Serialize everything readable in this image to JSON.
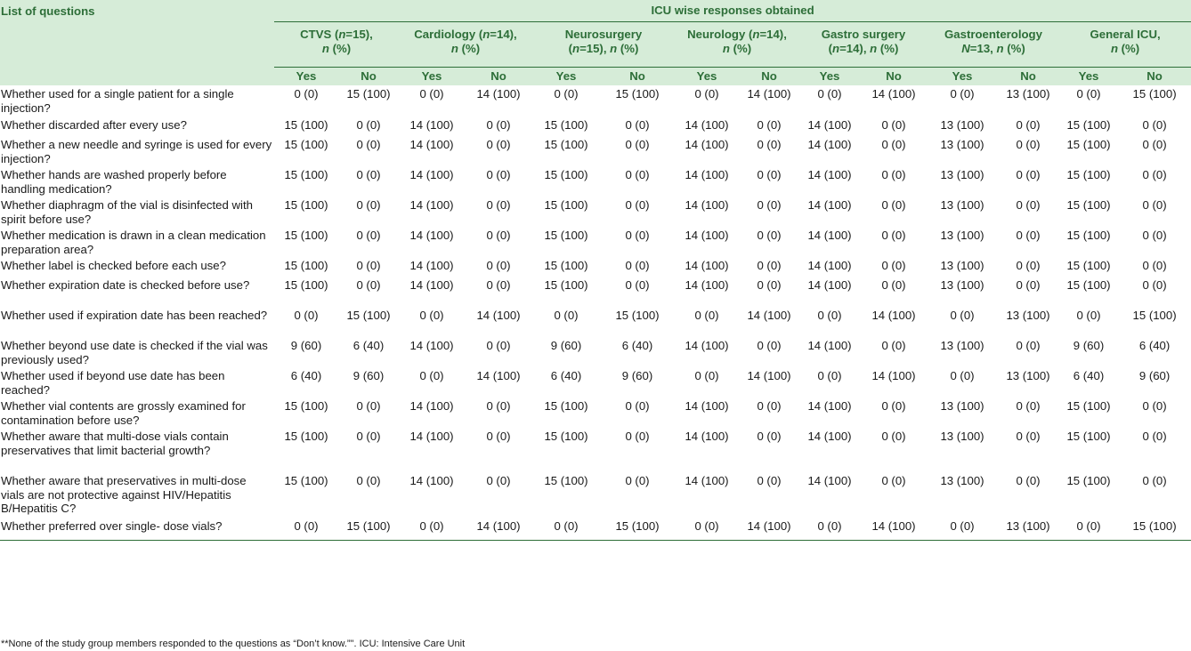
{
  "header": {
    "list_label": "List of questions",
    "icu_label": "ICU wise responses obtained",
    "groups": [
      {
        "name": "CTVS (",
        "n_label": "n",
        "n_eq": "=15),",
        "second": "n",
        "pct": " (%)"
      },
      {
        "name": "Cardiology (",
        "n_label": "n",
        "n_eq": "=14),",
        "second": "n",
        "pct": " (%)"
      },
      {
        "name": "Neurosurgery",
        "line2a": "(",
        "n_label": "n",
        "n_eq": "=15), ",
        "second": "n",
        "pct": " (%)"
      },
      {
        "name": "Neurology (",
        "n_label": "n",
        "n_eq": "=14),",
        "second": "n",
        "pct": " (%)"
      },
      {
        "name": "Gastro surgery",
        "line2a": "(",
        "n_label": "n",
        "n_eq": "=14), ",
        "second": "n",
        "pct": " (%)"
      },
      {
        "name": "Gastroenterology",
        "n_label": "N",
        "n_eq": "=13, ",
        "second": "n",
        "pct": " (%)"
      },
      {
        "name": "General ICU,",
        "second": "n",
        "pct": " (%)"
      }
    ],
    "yes": "Yes",
    "no": "No"
  },
  "rows": [
    {
      "q": "Whether used for a single patient for a single injection?",
      "v": [
        "0 (0)",
        "15 (100)",
        "0 (0)",
        "14 (100)",
        "0 (0)",
        "15 (100)",
        "0 (0)",
        "14 (100)",
        "0 (0)",
        "14 (100)",
        "0 (0)",
        "13 (100)",
        "0 (0)",
        "15 (100)"
      ]
    },
    {
      "q": "Whether discarded after every use?",
      "v": [
        "15 (100)",
        "0 (0)",
        "14 (100)",
        "0 (0)",
        "15 (100)",
        "0 (0)",
        "14 (100)",
        "0 (0)",
        "14 (100)",
        "0 (0)",
        "13 (100)",
        "0 (0)",
        "15 (100)",
        "0 (0)"
      ]
    },
    {
      "q": "Whether a new needle and syringe is used for every injection?",
      "v": [
        "15 (100)",
        "0 (0)",
        "14 (100)",
        "0 (0)",
        "15 (100)",
        "0 (0)",
        "14 (100)",
        "0 (0)",
        "14 (100)",
        "0 (0)",
        "13 (100)",
        "0 (0)",
        "15 (100)",
        "0 (0)"
      ]
    },
    {
      "q": "Whether hands are washed properly before handling medication?",
      "v": [
        "15 (100)",
        "0 (0)",
        "14 (100)",
        "0 (0)",
        "15 (100)",
        "0 (0)",
        "14 (100)",
        "0 (0)",
        "14 (100)",
        "0 (0)",
        "13 (100)",
        "0 (0)",
        "15 (100)",
        "0 (0)"
      ]
    },
    {
      "q": "Whether diaphragm of the vial is disinfected with spirit before use?",
      "v": [
        "15 (100)",
        "0 (0)",
        "14 (100)",
        "0 (0)",
        "15 (100)",
        "0 (0)",
        "14 (100)",
        "0 (0)",
        "14 (100)",
        "0 (0)",
        "13 (100)",
        "0 (0)",
        "15 (100)",
        "0 (0)"
      ]
    },
    {
      "q": "Whether medication is drawn in a clean medication preparation area?",
      "v": [
        "15 (100)",
        "0 (0)",
        "14 (100)",
        "0 (0)",
        "15 (100)",
        "0 (0)",
        "14 (100)",
        "0 (0)",
        "14 (100)",
        "0 (0)",
        "13 (100)",
        "0 (0)",
        "15 (100)",
        "0 (0)"
      ]
    },
    {
      "q": "Whether label is checked before each use?",
      "v": [
        "15 (100)",
        "0 (0)",
        "14 (100)",
        "0 (0)",
        "15 (100)",
        "0 (0)",
        "14 (100)",
        "0 (0)",
        "14 (100)",
        "0 (0)",
        "13 (100)",
        "0 (0)",
        "15 (100)",
        "0 (0)"
      ]
    },
    {
      "q": "Whether expiration date is checked before use?",
      "v": [
        "15 (100)",
        "0 (0)",
        "14 (100)",
        "0 (0)",
        "15 (100)",
        "0 (0)",
        "14 (100)",
        "0 (0)",
        "14 (100)",
        "0 (0)",
        "13 (100)",
        "0 (0)",
        "15 (100)",
        "0 (0)"
      ]
    },
    {
      "q": "Whether used if expiration date has been reached?",
      "v": [
        "0 (0)",
        "15 (100)",
        "0 (0)",
        "14 (100)",
        "0 (0)",
        "15 (100)",
        "0 (0)",
        "14 (100)",
        "0 (0)",
        "14 (100)",
        "0 (0)",
        "13 (100)",
        "0 (0)",
        "15 (100)"
      ]
    },
    {
      "q": "Whether beyond use date is checked if the vial was previously used?",
      "v": [
        "9 (60)",
        "6 (40)",
        "14 (100)",
        "0 (0)",
        "9 (60)",
        "6 (40)",
        "14 (100)",
        "0 (0)",
        "14 (100)",
        "0 (0)",
        "13 (100)",
        "0 (0)",
        "9 (60)",
        "6 (40)"
      ]
    },
    {
      "q": "Whether used if beyond use date has been reached?",
      "v": [
        "6 (40)",
        "9 (60)",
        "0 (0)",
        "14 (100)",
        "6 (40)",
        "9 (60)",
        "0 (0)",
        "14 (100)",
        "0 (0)",
        "14 (100)",
        "0 (0)",
        "13 (100)",
        "6 (40)",
        "9 (60)"
      ]
    },
    {
      "q": "Whether vial contents are grossly examined for contamination before use?",
      "v": [
        "15 (100)",
        "0 (0)",
        "14 (100)",
        "0 (0)",
        "15 (100)",
        "0 (0)",
        "14 (100)",
        "0 (0)",
        "14 (100)",
        "0 (0)",
        "13 (100)",
        "0 (0)",
        "15 (100)",
        "0 (0)"
      ]
    },
    {
      "q": "Whether aware that multi-dose vials contain preservatives that limit bacterial growth?",
      "v": [
        "15 (100)",
        "0 (0)",
        "14 (100)",
        "0 (0)",
        "15 (100)",
        "0 (0)",
        "14 (100)",
        "0 (0)",
        "14 (100)",
        "0 (0)",
        "13 (100)",
        "0 (0)",
        "15 (100)",
        "0 (0)"
      ]
    },
    {
      "q": "Whether aware that preservatives in multi-dose vials are not protective against HIV/Hepatitis B/Hepatitis C?",
      "v": [
        "15 (100)",
        "0 (0)",
        "14 (100)",
        "0 (0)",
        "15 (100)",
        "0 (0)",
        "14 (100)",
        "0 (0)",
        "14 (100)",
        "0 (0)",
        "13 (100)",
        "0 (0)",
        "15 (100)",
        "0 (0)"
      ]
    },
    {
      "q": "Whether preferred over single- dose vials?",
      "v": [
        "0 (0)",
        "15 (100)",
        "0 (0)",
        "14 (100)",
        "0 (0)",
        "15 (100)",
        "0 (0)",
        "14 (100)",
        "0 (0)",
        "14 (100)",
        "0 (0)",
        "13 (100)",
        "0 (0)",
        "15 (100)"
      ]
    }
  ],
  "footnote": "**None of the study group members responded to the questions as “Don’t know.”\". ICU: Intensive Care Unit"
}
